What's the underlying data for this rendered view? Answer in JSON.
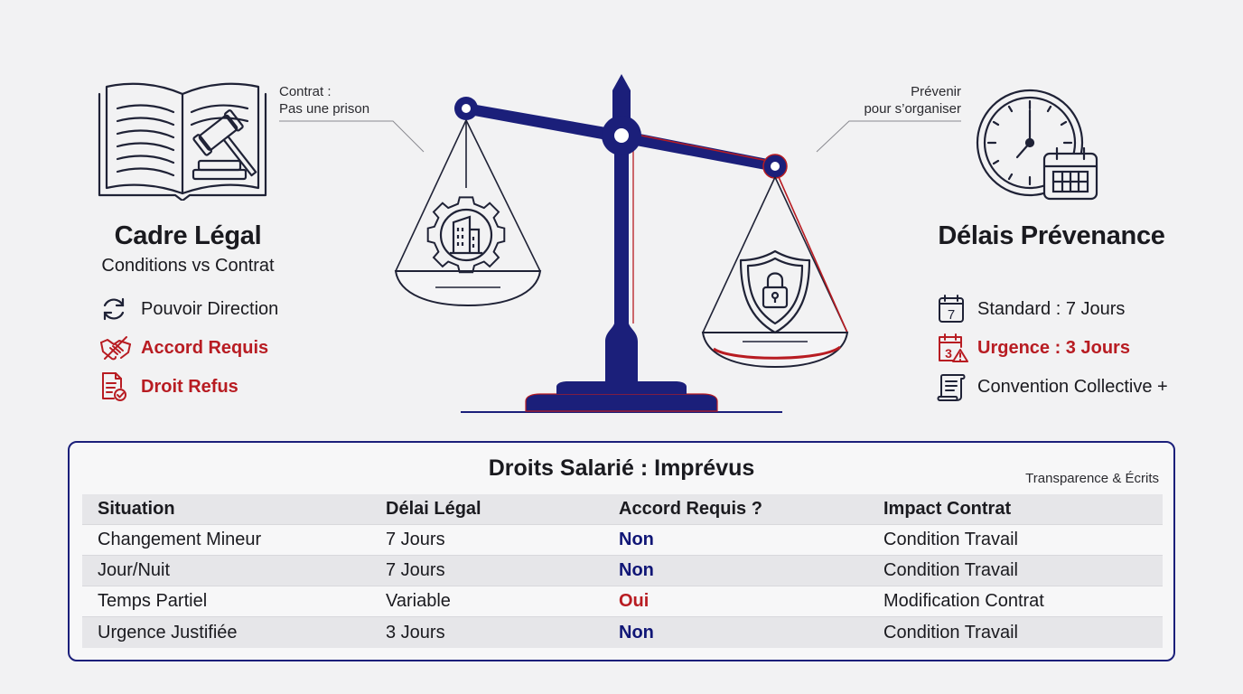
{
  "left": {
    "callout": [
      "Contrat :",
      "Pas une prison"
    ],
    "title": "Cadre Légal",
    "subtitle": "Conditions vs Contrat",
    "items": [
      {
        "label": "Pouvoir Direction",
        "highlight": false,
        "icon": "refresh-icon"
      },
      {
        "label": "Accord Requis",
        "highlight": true,
        "icon": "handshake-icon"
      },
      {
        "label": "Droit Refus",
        "highlight": true,
        "icon": "document-check-icon"
      }
    ]
  },
  "right": {
    "callout": [
      "Prévenir",
      "pour s’organiser"
    ],
    "title": "Délais Prévenance",
    "items": [
      {
        "label": "Standard : 7 Jours",
        "highlight": false,
        "icon": "calendar-7-icon",
        "badge": "7"
      },
      {
        "label": "Urgence : 3 Jours",
        "highlight": true,
        "icon": "calendar-alert-icon",
        "badge": "3"
      },
      {
        "label": "Convention Collective +",
        "highlight": false,
        "icon": "scroll-icon"
      }
    ]
  },
  "table": {
    "title": "Droits Salarié : Imprévus",
    "note": "Transparence & Écrits",
    "headers": [
      "Situation",
      "Délai Légal",
      "Accord Requis ?",
      "Impact Contrat"
    ],
    "rows": [
      [
        "Changement Mineur",
        "7 Jours",
        "Non",
        "Condition Travail"
      ],
      [
        "Jour/Nuit",
        "7 Jours",
        "Non",
        "Condition Travail"
      ],
      [
        "Temps Partiel",
        "Variable",
        "Oui",
        "Modification Contrat"
      ],
      [
        "Urgence Justifiée",
        "3 Jours",
        "Non",
        "Condition Travail"
      ]
    ]
  },
  "colors": {
    "navy": "#1b1f7a",
    "red": "#b81c22",
    "text": "#1a1a1f",
    "background": "#f2f2f3"
  }
}
